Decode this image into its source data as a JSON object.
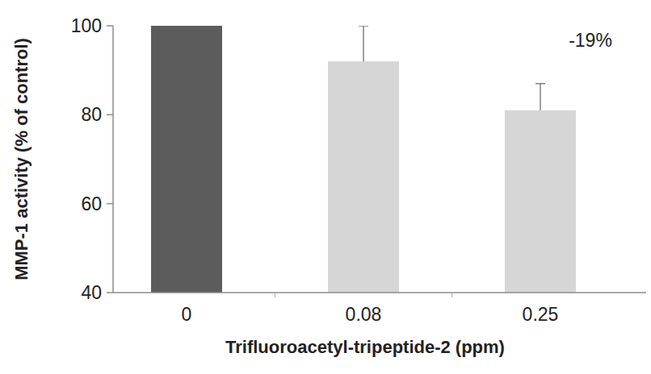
{
  "chart_data": {
    "type": "bar",
    "x_label": "Trifluoroacetyl-tripeptide-2 (ppm)",
    "y_label": "MMP-1 activity (% of control)",
    "annotation": "-19%",
    "categories": [
      "0",
      "0.08",
      "0.25"
    ],
    "values": [
      100,
      92,
      81
    ],
    "errors": [
      0.3,
      8,
      6
    ],
    "colors": [
      "#5c5c5c",
      "#d6d6d6",
      "#d6d6d6"
    ],
    "ylim": [
      40,
      100
    ],
    "yticks": [
      40,
      60,
      80,
      100
    ],
    "grid": false
  }
}
